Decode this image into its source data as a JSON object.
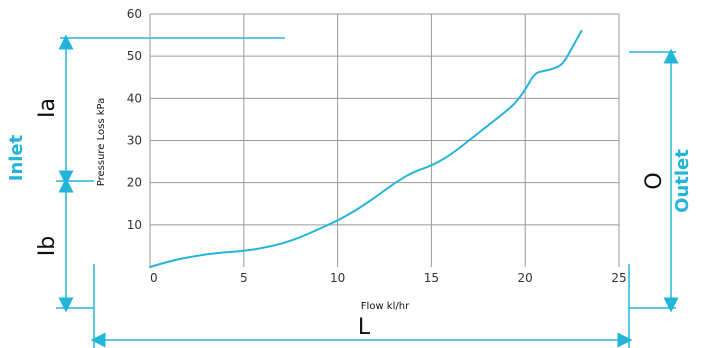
{
  "chart_data": {
    "type": "line",
    "title": "",
    "xlabel": "Flow kl/hr",
    "ylabel": "Pressure Loss kPa",
    "xlim": [
      0,
      25
    ],
    "ylim": [
      0,
      60
    ],
    "x_ticks": [
      0,
      5,
      10,
      15,
      20,
      25
    ],
    "y_ticks": [
      10,
      20,
      30,
      40,
      50,
      60
    ],
    "grid": true,
    "series": [
      {
        "x": [
          0,
          1,
          2,
          3,
          4,
          5,
          6,
          7,
          8,
          9,
          10,
          11,
          12,
          13,
          14,
          15,
          16,
          17,
          18,
          19,
          19.5,
          20,
          20.5,
          21,
          21.5,
          22,
          22.5,
          23
        ],
        "y": [
          0,
          1.3,
          2.3,
          3.0,
          3.5,
          3.8,
          4.5,
          5.5,
          7.0,
          9.0,
          11.0,
          13.5,
          16.5,
          19.8,
          22.5,
          24.0,
          26.5,
          30.0,
          33.5,
          37.0,
          39.0,
          42.0,
          46.0,
          46.5,
          47.0,
          48.0,
          52.0,
          56.0
        ],
        "color": "#22b5d9"
      }
    ],
    "tick_labels": {
      "x0": "0",
      "x5": "5",
      "x10": "10",
      "x15": "15",
      "x20": "20",
      "x25": "25",
      "y10": "10",
      "y20": "20",
      "y30": "30",
      "y40": "40",
      "y50": "50",
      "y60": "60"
    }
  },
  "dimensions": {
    "inlet_upper": "Ia",
    "inlet_lower": "Ib",
    "outlet": "O",
    "length": "L"
  },
  "labels": {
    "inlet": "Inlet",
    "outlet": "Outlet"
  },
  "colors": {
    "accent": "#22b5d9",
    "grid": "#9a9a9a",
    "text": "#111111"
  }
}
